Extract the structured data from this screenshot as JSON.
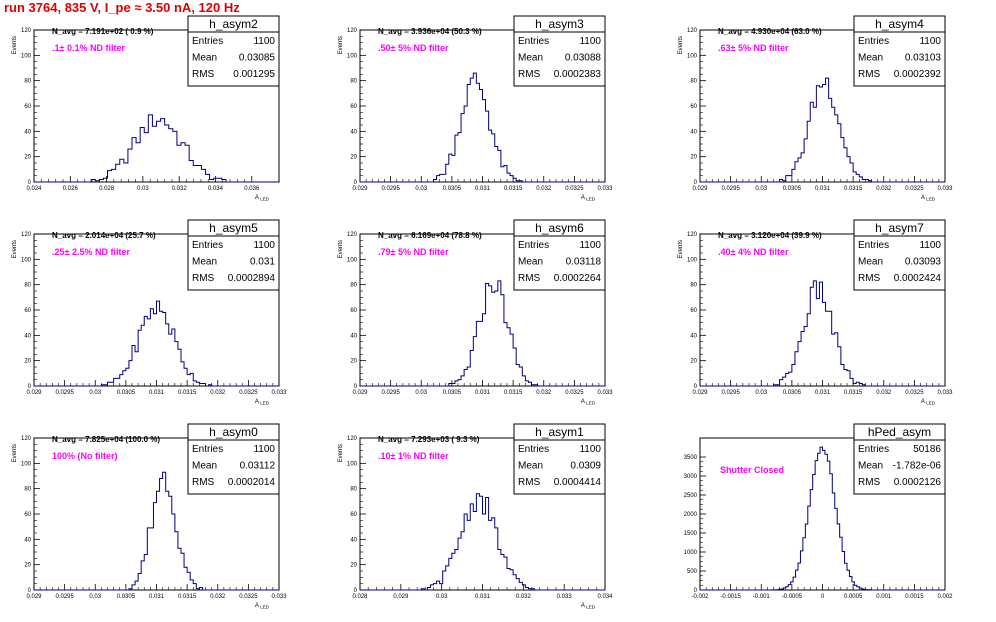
{
  "page": {
    "run_title": "run 3764,   835 V, I_pe ≈ 3.50 nA, 120 Hz"
  },
  "colors": {
    "histogram": "#000080",
    "note": "#ff00ff",
    "title": "#e00000"
  },
  "chart_data": [
    {
      "type": "histogram",
      "name": "h_asym2",
      "navg": "N_avg = 7.191e+02 ( 0.9 %)",
      "note": ".1± 0.1% ND filter",
      "stats": {
        "entries": "1100",
        "mean": "0.03085",
        "rms": "0.001295"
      },
      "xlabel": "A_LED",
      "ylabel": "Events",
      "xlim": [
        0.024,
        0.0375
      ],
      "ylim": [
        0,
        120
      ],
      "xticks": [
        0.024,
        0.026,
        0.028,
        0.03,
        0.032,
        0.034,
        0.036
      ],
      "xticklabels": [
        "0.024",
        "0.026",
        "0.028",
        "0.03",
        "0.032",
        "0.034",
        "0.036"
      ],
      "yticks": [
        0,
        20,
        40,
        60,
        80,
        100,
        120
      ],
      "yticklabels": [
        "0",
        "20",
        "40",
        "60",
        "80",
        "100",
        "120"
      ],
      "hist_mean": 0.03085,
      "hist_sigma": 0.0013,
      "hist_peak": 50,
      "bins": 60
    },
    {
      "type": "histogram",
      "name": "h_asym3",
      "navg": "N_avg = 3.936e+04 (50.3 %)",
      "note": ".50± 5% ND filter",
      "stats": {
        "entries": "1100",
        "mean": "0.03088",
        "rms": "0.0002383"
      },
      "xlabel": "A_LED",
      "ylabel": "Events",
      "xlim": [
        0.029,
        0.033
      ],
      "ylim": [
        0,
        120
      ],
      "xticks": [
        0.029,
        0.0295,
        0.03,
        0.0305,
        0.031,
        0.0315,
        0.032,
        0.0325,
        0.033
      ],
      "xticklabels": [
        "0.029",
        "0.0295",
        "0.03",
        "0.0305",
        "0.031",
        "0.0315",
        "0.032",
        "0.0325",
        "0.033"
      ],
      "yticks": [
        0,
        20,
        40,
        60,
        80,
        100,
        120
      ],
      "yticklabels": [
        "0",
        "20",
        "40",
        "60",
        "80",
        "100",
        "120"
      ],
      "hist_mean": 0.03088,
      "hist_sigma": 0.00024,
      "hist_peak": 80,
      "bins": 80
    },
    {
      "type": "histogram",
      "name": "h_asym4",
      "navg": "N_avg = 4.930e+04 (63.0 %)",
      "note": ".63± 5% ND filter",
      "stats": {
        "entries": "1100",
        "mean": "0.03103",
        "rms": "0.0002392"
      },
      "xlabel": "A_LED",
      "ylabel": "Events",
      "xlim": [
        0.029,
        0.033
      ],
      "ylim": [
        0,
        120
      ],
      "xticks": [
        0.029,
        0.0295,
        0.03,
        0.0305,
        0.031,
        0.0315,
        0.032,
        0.0325,
        0.033
      ],
      "xticklabels": [
        "0.029",
        "0.0295",
        "0.03",
        "0.0305",
        "0.031",
        "0.0315",
        "0.032",
        "0.0325",
        "0.033"
      ],
      "yticks": [
        0,
        20,
        40,
        60,
        80,
        100,
        120
      ],
      "yticklabels": [
        "0",
        "20",
        "40",
        "60",
        "80",
        "100",
        "120"
      ],
      "hist_mean": 0.03103,
      "hist_sigma": 0.00024,
      "hist_peak": 80,
      "bins": 80
    },
    {
      "type": "histogram",
      "name": "h_asym5",
      "navg": "N_avg = 2.014e+04 (25.7 %)",
      "note": ".25± 2.5% ND filter",
      "stats": {
        "entries": "1100",
        "mean": "0.031",
        "rms": "0.0002894"
      },
      "xlabel": "A_LED",
      "ylabel": "Events",
      "xlim": [
        0.029,
        0.033
      ],
      "ylim": [
        0,
        120
      ],
      "xticks": [
        0.029,
        0.0295,
        0.03,
        0.0305,
        0.031,
        0.0315,
        0.032,
        0.0325,
        0.033
      ],
      "xticklabels": [
        "0.029",
        "0.0295",
        "0.03",
        "0.0305",
        "0.031",
        "0.0315",
        "0.032",
        "0.0325",
        "0.033"
      ],
      "yticks": [
        0,
        20,
        40,
        60,
        80,
        100,
        120
      ],
      "yticklabels": [
        "0",
        "20",
        "40",
        "60",
        "80",
        "100",
        "120"
      ],
      "hist_mean": 0.031,
      "hist_sigma": 0.00029,
      "hist_peak": 62,
      "bins": 80
    },
    {
      "type": "histogram",
      "name": "h_asym6",
      "navg": "N_avg = 6.169e+04 (78.8 %)",
      "note": ".79± 5% ND filter",
      "stats": {
        "entries": "1100",
        "mean": "0.03118",
        "rms": "0.0002264"
      },
      "xlabel": "A_LED",
      "ylabel": "Events",
      "xlim": [
        0.029,
        0.033
      ],
      "ylim": [
        0,
        120
      ],
      "xticks": [
        0.029,
        0.0295,
        0.03,
        0.0305,
        0.031,
        0.0315,
        0.032,
        0.0325,
        0.033
      ],
      "xticklabels": [
        "0.029",
        "0.0295",
        "0.03",
        "0.0305",
        "0.031",
        "0.0315",
        "0.032",
        "0.0325",
        "0.033"
      ],
      "yticks": [
        0,
        20,
        40,
        60,
        80,
        100,
        120
      ],
      "yticklabels": [
        "0",
        "20",
        "40",
        "60",
        "80",
        "100",
        "120"
      ],
      "hist_mean": 0.03118,
      "hist_sigma": 0.00023,
      "hist_peak": 82,
      "bins": 80
    },
    {
      "type": "histogram",
      "name": "h_asym7",
      "navg": "N_avg = 3.120e+04 (39.9 %)",
      "note": ".40± 4% ND filter",
      "stats": {
        "entries": "1100",
        "mean": "0.03093",
        "rms": "0.0002424"
      },
      "xlabel": "A_LED",
      "ylabel": "Events",
      "xlim": [
        0.029,
        0.033
      ],
      "ylim": [
        0,
        120
      ],
      "xticks": [
        0.029,
        0.0295,
        0.03,
        0.0305,
        0.031,
        0.0315,
        0.032,
        0.0325,
        0.033
      ],
      "xticklabels": [
        "0.029",
        "0.0295",
        "0.03",
        "0.0305",
        "0.031",
        "0.0315",
        "0.032",
        "0.0325",
        "0.033"
      ],
      "yticks": [
        0,
        20,
        40,
        60,
        80,
        100,
        120
      ],
      "yticklabels": [
        "0",
        "20",
        "40",
        "60",
        "80",
        "100",
        "120"
      ],
      "hist_mean": 0.03093,
      "hist_sigma": 0.00024,
      "hist_peak": 76,
      "bins": 80
    },
    {
      "type": "histogram",
      "name": "h_asym0",
      "navg": "N_avg = 7.825e+04 (100.0 %)",
      "note": "100% (No filter)",
      "stats": {
        "entries": "1100",
        "mean": "0.03112",
        "rms": "0.0002014"
      },
      "xlabel": "A_LED",
      "ylabel": "Events",
      "xlim": [
        0.029,
        0.033
      ],
      "ylim": [
        0,
        120
      ],
      "xticks": [
        0.029,
        0.0295,
        0.03,
        0.0305,
        0.031,
        0.0315,
        0.032,
        0.0325,
        0.033
      ],
      "xticklabels": [
        "0.029",
        "0.0295",
        "0.03",
        "0.0305",
        "0.031",
        "0.0315",
        "0.032",
        "0.0325",
        "0.033"
      ],
      "yticks": [
        0,
        20,
        40,
        60,
        80,
        100,
        120
      ],
      "yticklabels": [
        "0",
        "20",
        "40",
        "60",
        "80",
        "100",
        "120"
      ],
      "hist_mean": 0.03112,
      "hist_sigma": 0.0002,
      "hist_peak": 90,
      "bins": 80
    },
    {
      "type": "histogram",
      "name": "h_asym1",
      "navg": "N_avg = 7.293e+03 ( 9.3 %)",
      "note": ".10± 1% ND filter",
      "stats": {
        "entries": "1100",
        "mean": "0.0309",
        "rms": "0.0004414"
      },
      "xlabel": "A_LED",
      "ylabel": "Events",
      "xlim": [
        0.028,
        0.034
      ],
      "ylim": [
        0,
        120
      ],
      "xticks": [
        0.028,
        0.029,
        0.03,
        0.031,
        0.032,
        0.033,
        0.034
      ],
      "xticklabels": [
        "0.028",
        "0.029",
        "0.03",
        "0.031",
        "0.032",
        "0.033",
        "0.034"
      ],
      "yticks": [
        0,
        20,
        40,
        60,
        80,
        100,
        120
      ],
      "yticklabels": [
        "0",
        "20",
        "40",
        "60",
        "80",
        "100",
        "120"
      ],
      "hist_mean": 0.0309,
      "hist_sigma": 0.00044,
      "hist_peak": 72,
      "bins": 80
    },
    {
      "type": "histogram",
      "name": "hPed_asym",
      "navg": "",
      "note": "Shutter Closed",
      "stats": {
        "entries": "50186",
        "mean": "-1.782e-06",
        "rms": "0.0002126"
      },
      "xlabel": "",
      "ylabel": "",
      "xlim": [
        -0.002,
        0.002
      ],
      "ylim": [
        0,
        4000
      ],
      "xticks": [
        -0.002,
        -0.0015,
        -0.001,
        -0.0005,
        0,
        0.0005,
        0.001,
        0.0015,
        0.002
      ],
      "xticklabels": [
        "-0.002",
        "-0.0015",
        "-0.001",
        "-0.0005",
        "0",
        "0.0005",
        "0.001",
        "0.0015",
        "0.002"
      ],
      "yticks": [
        0,
        500,
        1000,
        1500,
        2000,
        2500,
        3000,
        3500
      ],
      "yticklabels": [
        "0",
        "500",
        "1000",
        "1500",
        "2000",
        "2500",
        "3000",
        "3500"
      ],
      "hist_mean": 0.0,
      "hist_sigma": 0.00021,
      "hist_peak": 3750,
      "bins": 100
    }
  ]
}
